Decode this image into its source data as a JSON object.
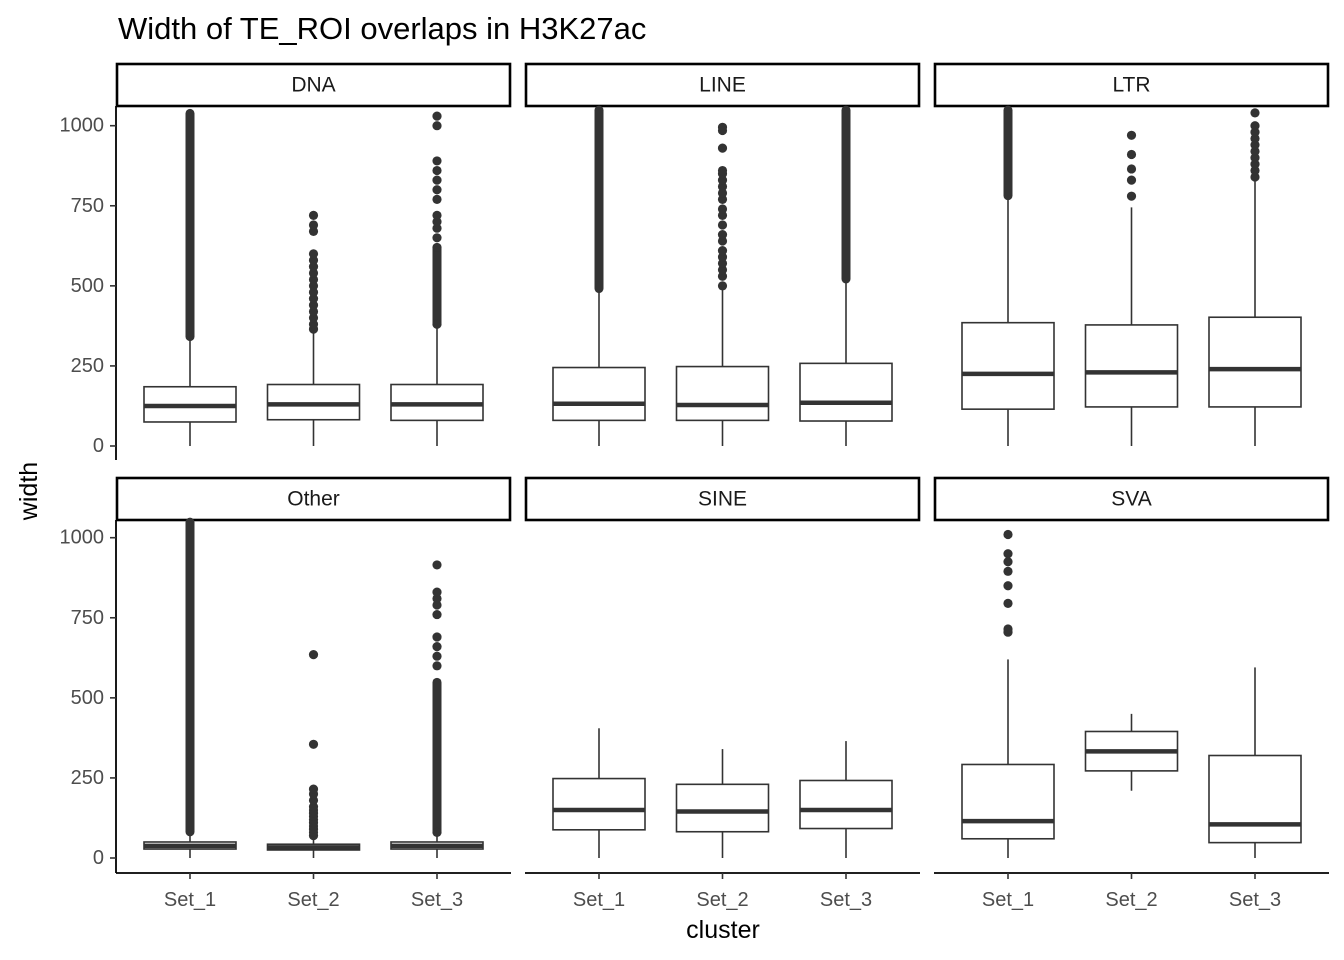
{
  "chart_data": {
    "type": "boxplot",
    "title": "Width of TE_ROI overlaps in H3K27ac",
    "xlabel": "cluster",
    "ylabel": "width",
    "ylim": [
      -80,
      1050
    ],
    "y_ticks": [
      0,
      250,
      500,
      750,
      1000
    ],
    "categories": [
      "Set_1",
      "Set_2",
      "Set_3"
    ],
    "facets": [
      {
        "name": "DNA",
        "boxes": [
          {
            "category": "Set_1",
            "lower_whisker": 0,
            "q1": 75,
            "median": 125,
            "q3": 185,
            "upper_whisker": 340,
            "outliers": [
              340,
              1040
            ],
            "outlier_dense": true
          },
          {
            "category": "Set_2",
            "lower_whisker": 0,
            "q1": 82,
            "median": 130,
            "q3": 192,
            "upper_whisker": 355,
            "outliers": [
              365,
              380,
              400,
              420,
              440,
              460,
              480,
              500,
              520,
              540,
              560,
              580,
              600,
              670,
              690,
              720
            ]
          },
          {
            "category": "Set_3",
            "lower_whisker": 0,
            "q1": 80,
            "median": 130,
            "q3": 192,
            "upper_whisker": 370,
            "outliers": [
              380,
              620,
              650,
              680,
              700,
              720,
              770,
              800,
              830,
              860,
              890,
              1000,
              1030
            ],
            "outlier_dense_range": [
              380,
              620
            ]
          }
        ]
      },
      {
        "name": "LINE",
        "boxes": [
          {
            "category": "Set_1",
            "lower_whisker": 0,
            "q1": 80,
            "median": 132,
            "q3": 245,
            "upper_whisker": 485,
            "outliers": [
              490,
              1060
            ],
            "outlier_dense": true
          },
          {
            "category": "Set_2",
            "lower_whisker": 0,
            "q1": 80,
            "median": 128,
            "q3": 248,
            "upper_whisker": 495,
            "outliers": [
              500,
              530,
              550,
              570,
              590,
              610,
              640,
              660,
              690,
              720,
              740,
              770,
              790,
              810,
              830,
              850,
              860,
              930,
              985,
              995
            ]
          },
          {
            "category": "Set_3",
            "lower_whisker": 0,
            "q1": 78,
            "median": 135,
            "q3": 258,
            "upper_whisker": 515,
            "outliers": [
              520,
              1060
            ],
            "outlier_dense": true
          }
        ]
      },
      {
        "name": "LTR",
        "boxes": [
          {
            "category": "Set_1",
            "lower_whisker": 0,
            "q1": 115,
            "median": 225,
            "q3": 385,
            "upper_whisker": 775,
            "outliers": [
              780,
              1060
            ],
            "outlier_dense": true
          },
          {
            "category": "Set_2",
            "lower_whisker": 0,
            "q1": 122,
            "median": 230,
            "q3": 378,
            "upper_whisker": 745,
            "outliers": [
              780,
              830,
              865,
              910,
              970
            ]
          },
          {
            "category": "Set_3",
            "lower_whisker": 0,
            "q1": 122,
            "median": 240,
            "q3": 402,
            "upper_whisker": 840,
            "outliers": [
              840,
              860,
              880,
              900,
              920,
              940,
              960,
              980,
              1000,
              1040
            ]
          }
        ]
      },
      {
        "name": "Other",
        "boxes": [
          {
            "category": "Set_1",
            "lower_whisker": 0,
            "q1": 28,
            "median": 38,
            "q3": 50,
            "upper_whisker": 80,
            "outliers": [
              80,
              1060
            ],
            "outlier_dense": true
          },
          {
            "category": "Set_2",
            "lower_whisker": 0,
            "q1": 25,
            "median": 33,
            "q3": 43,
            "upper_whisker": 65,
            "outliers": [
              70,
              80,
              90,
              100,
              110,
              120,
              130,
              140,
              150,
              160,
              180,
              200,
              215,
              355,
              635
            ]
          },
          {
            "category": "Set_3",
            "lower_whisker": 0,
            "q1": 28,
            "median": 38,
            "q3": 50,
            "upper_whisker": 80,
            "outliers": [
              80,
              600,
              630,
              660,
              690,
              760,
              790,
              810,
              830,
              915
            ],
            "outlier_dense_range": [
              80,
              550
            ]
          }
        ]
      },
      {
        "name": "SINE",
        "boxes": [
          {
            "category": "Set_1",
            "lower_whisker": 0,
            "q1": 88,
            "median": 150,
            "q3": 248,
            "upper_whisker": 405,
            "outliers": []
          },
          {
            "category": "Set_2",
            "lower_whisker": 0,
            "q1": 82,
            "median": 145,
            "q3": 230,
            "upper_whisker": 340,
            "outliers": []
          },
          {
            "category": "Set_3",
            "lower_whisker": 0,
            "q1": 92,
            "median": 150,
            "q3": 242,
            "upper_whisker": 365,
            "outliers": []
          }
        ]
      },
      {
        "name": "SVA",
        "boxes": [
          {
            "category": "Set_1",
            "lower_whisker": 0,
            "q1": 60,
            "median": 115,
            "q3": 292,
            "upper_whisker": 620,
            "outliers": [
              705,
              715,
              795,
              850,
              895,
              925,
              950,
              1010
            ]
          },
          {
            "category": "Set_2",
            "lower_whisker": 210,
            "q1": 272,
            "median": 333,
            "q3": 395,
            "upper_whisker": 450,
            "outliers": []
          },
          {
            "category": "Set_3",
            "lower_whisker": 0,
            "q1": 48,
            "median": 105,
            "q3": 320,
            "upper_whisker": 595,
            "outliers": []
          }
        ]
      }
    ]
  }
}
